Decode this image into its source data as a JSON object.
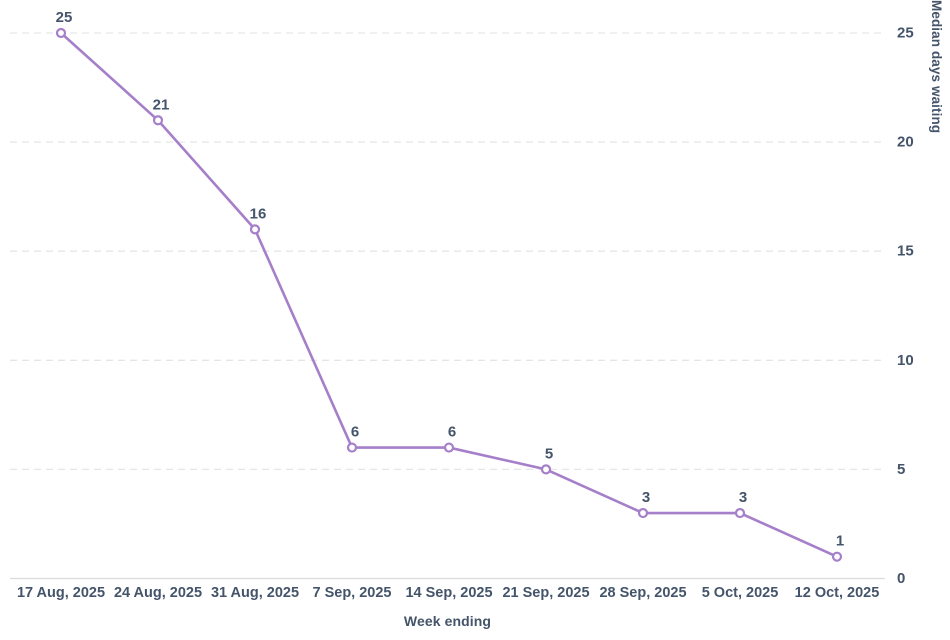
{
  "chart_data": {
    "type": "line",
    "title": "",
    "categories": [
      "17 Aug, 2025",
      "24 Aug, 2025",
      "31 Aug, 2025",
      "7 Sep, 2025",
      "14 Sep, 2025",
      "21 Sep, 2025",
      "28 Sep, 2025",
      "5 Oct, 2025",
      "12 Oct, 2025"
    ],
    "values": [
      25,
      21,
      16,
      6,
      6,
      5,
      3,
      3,
      1
    ],
    "xlabel": "Week ending",
    "ylabel": "Median days waiting",
    "ylim": [
      0,
      25
    ],
    "yticks": [
      0,
      5,
      10,
      15,
      20,
      25
    ],
    "y_axis_side": "right",
    "grid": "horizontal-dashed",
    "legend": "none",
    "data_labels": true,
    "marker": "open-circle",
    "colors": {
      "line": "#a57fc9",
      "marker_fill": "#ffffff",
      "grid": "#e6e6e6",
      "axis_line": "#dcdcdc",
      "text": "#44546a"
    }
  }
}
